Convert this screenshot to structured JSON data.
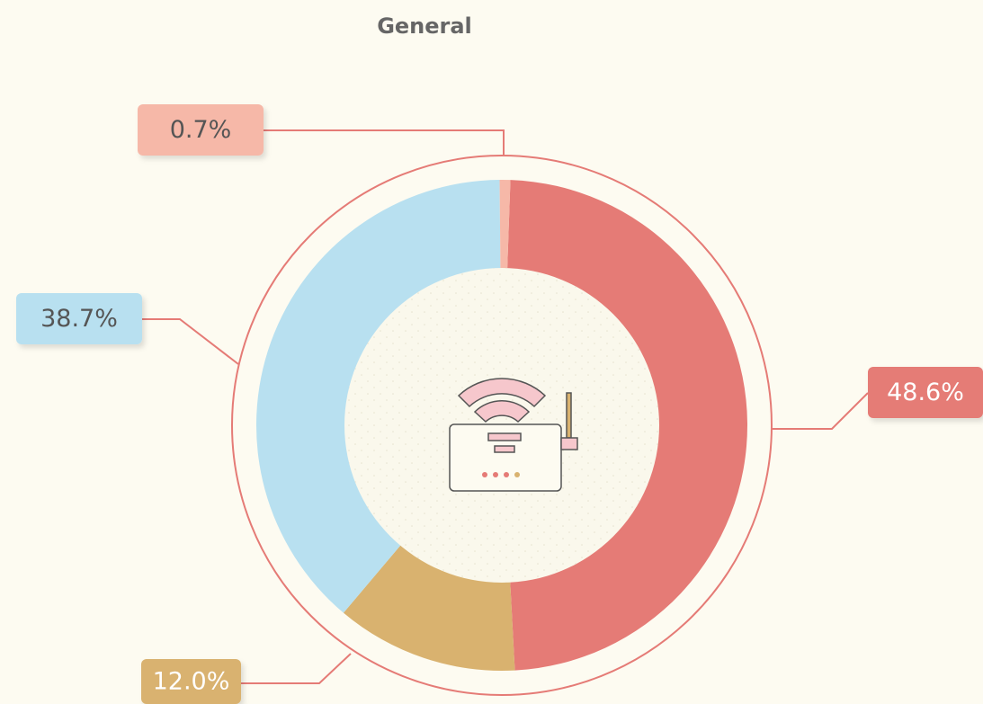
{
  "chart_data": {
    "type": "donut",
    "title": "General",
    "values": [
      48.6,
      12.0,
      38.7,
      0.7
    ],
    "value_labels": [
      "48.6%",
      "12.0%",
      "38.7%",
      "0.7%"
    ],
    "colors": [
      "#e57b76",
      "#d9b26f",
      "#b8e0f0",
      "#f6b8a8"
    ]
  }
}
